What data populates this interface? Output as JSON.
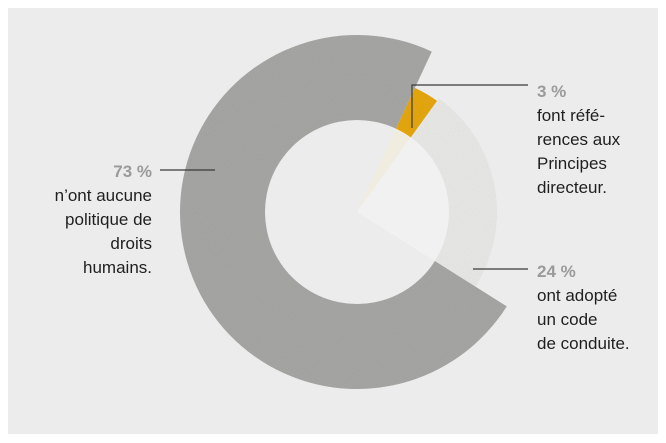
{
  "chart_data": {
    "type": "pie",
    "style": "exploded-donut",
    "slices": [
      {
        "pct_label": "73 %",
        "text": "n’ont aucune politique de droits humains.",
        "value": 73,
        "color": "#a6a6a4"
      },
      {
        "pct_label": "3 %",
        "text": "font références aux Principes directeur.",
        "value": 3,
        "color": "#e5a712"
      },
      {
        "pct_label": "24 %",
        "text": "ont adopté un code de conduite.",
        "value": 24,
        "color": "#e8e8e6"
      }
    ],
    "background": "#ececec",
    "center_hole_color": "#f2f2f2"
  },
  "labels": {
    "s73": {
      "pct": "73 %",
      "lines": [
        "n’ont aucune",
        "politique de",
        "droits",
        "humains."
      ]
    },
    "s3": {
      "pct": "3 %",
      "lines": [
        "font réfé-",
        "rences aux",
        "Principes",
        "directeur."
      ]
    },
    "s24": {
      "pct": "24 %",
      "lines": [
        "ont adopté",
        "un code",
        "de conduite."
      ]
    }
  }
}
